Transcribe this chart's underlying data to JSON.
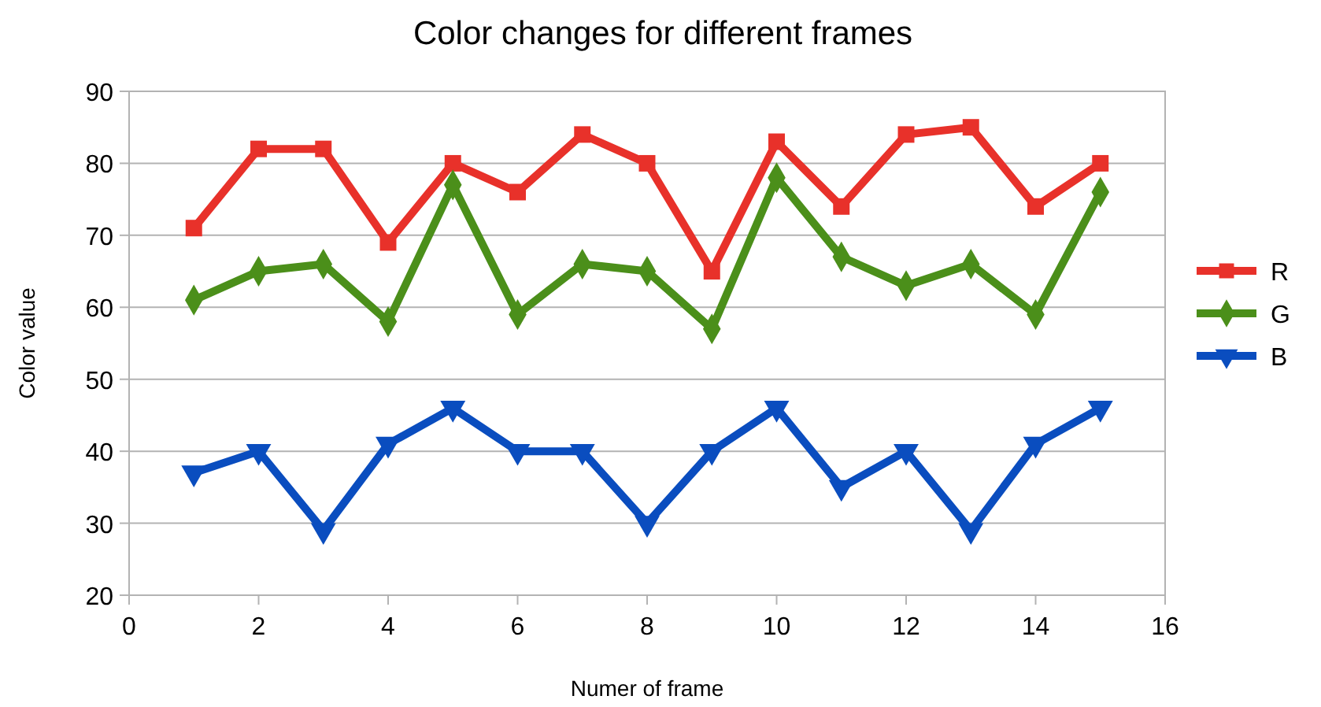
{
  "chart_data": {
    "type": "line",
    "title": "Color changes for different frames",
    "xlabel": "Numer of frame",
    "ylabel": "Color value",
    "x": [
      1,
      2,
      3,
      4,
      5,
      6,
      7,
      8,
      9,
      10,
      11,
      12,
      13,
      14,
      15
    ],
    "series": [
      {
        "name": "R",
        "color": "#e8312a",
        "marker": "square",
        "values": [
          71,
          82,
          82,
          69,
          80,
          76,
          84,
          80,
          65,
          83,
          74,
          84,
          85,
          74,
          80
        ]
      },
      {
        "name": "G",
        "color": "#4b8f1a",
        "marker": "diamond",
        "values": [
          61,
          65,
          66,
          58,
          77,
          59,
          66,
          65,
          57,
          78,
          67,
          63,
          66,
          59,
          76
        ]
      },
      {
        "name": "B",
        "color": "#0a4dbf",
        "marker": "triangle",
        "values": [
          37,
          40,
          29,
          41,
          46,
          40,
          40,
          30,
          40,
          46,
          35,
          40,
          29,
          41,
          46
        ]
      }
    ],
    "xlim": [
      0,
      16
    ],
    "xticks": [
      0,
      2,
      4,
      6,
      8,
      10,
      12,
      14,
      16
    ],
    "ylim": [
      20,
      90
    ],
    "yticks": [
      20,
      30,
      40,
      50,
      60,
      70,
      80,
      90
    ],
    "grid": "y",
    "legend": "right"
  }
}
